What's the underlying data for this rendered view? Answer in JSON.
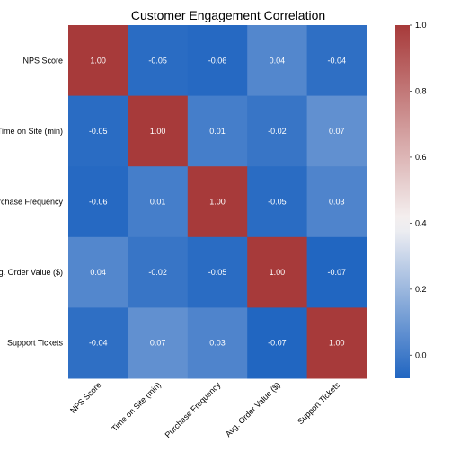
{
  "chart_data": {
    "type": "heatmap",
    "title": "Customer Engagement Correlation",
    "xlabel": "",
    "ylabel": "",
    "x_categories": [
      "NPS Score",
      "Time on Site (min)",
      "Purchase Frequency",
      "Avg. Order Value ($)",
      "Support Tickets"
    ],
    "y_categories": [
      "NPS Score",
      "Time on Site (min)",
      "Purchase Frequency",
      "Avg. Order Value ($)",
      "Support Tickets"
    ],
    "values": [
      [
        1.0,
        -0.05,
        -0.06,
        0.04,
        -0.04
      ],
      [
        -0.05,
        1.0,
        0.01,
        -0.02,
        0.07
      ],
      [
        -0.06,
        0.01,
        1.0,
        -0.05,
        0.03
      ],
      [
        0.04,
        -0.02,
        -0.05,
        1.0,
        -0.07
      ],
      [
        -0.04,
        0.07,
        0.03,
        -0.07,
        1.0
      ]
    ],
    "cell_labels": [
      [
        "1.00",
        "-0.05",
        "-0.06",
        "0.04",
        "-0.04"
      ],
      [
        "-0.05",
        "1.00",
        "0.01",
        "-0.02",
        "0.07"
      ],
      [
        "-0.06",
        "0.01",
        "1.00",
        "-0.05",
        "0.03"
      ],
      [
        "0.04",
        "-0.02",
        "-0.05",
        "1.00",
        "-0.07"
      ],
      [
        "-0.04",
        "0.07",
        "0.03",
        "-0.07",
        "1.00"
      ]
    ],
    "colorbar": {
      "range": [
        -0.07,
        1.0
      ],
      "ticks": [
        0.0,
        0.2,
        0.4,
        0.6,
        0.8,
        1.0
      ],
      "tick_labels": [
        "0.0",
        "0.2",
        "0.4",
        "0.6",
        "0.8",
        "1.0"
      ],
      "colormap": "vlag",
      "color_low": "#2166c1",
      "color_mid": "#f7f4f4",
      "color_high": "#a73a3a",
      "center": 0.4
    },
    "grid": false,
    "legend": "colorbar-right"
  }
}
